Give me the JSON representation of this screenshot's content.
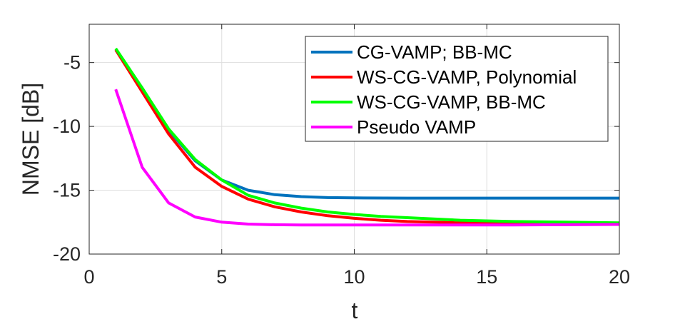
{
  "chart_data": {
    "type": "line",
    "xlabel": "t",
    "ylabel": "NMSE [dB]",
    "xlim": [
      0,
      20
    ],
    "ylim": [
      -20,
      -2
    ],
    "xticks": [
      0,
      5,
      10,
      15,
      20
    ],
    "yticks": [
      -5,
      -10,
      -15,
      -20
    ],
    "grid": true,
    "legend_position": "top-right",
    "series": [
      {
        "name": "CG-VAMP; BB-MC",
        "color": "#0072BD",
        "x": [
          1,
          2,
          3,
          4,
          5,
          6,
          7,
          8,
          9,
          10,
          12,
          14,
          16,
          18,
          20
        ],
        "y": [
          -4.0,
          -7.0,
          -10.3,
          -12.7,
          -14.2,
          -15.0,
          -15.35,
          -15.5,
          -15.58,
          -15.6,
          -15.62,
          -15.62,
          -15.62,
          -15.62,
          -15.62
        ]
      },
      {
        "name": "WS-CG-VAMP, Polynomial",
        "color": "#FF0000",
        "x": [
          1,
          2,
          3,
          4,
          5,
          6,
          7,
          8,
          9,
          10,
          11,
          12,
          14,
          16,
          18,
          20
        ],
        "y": [
          -4.0,
          -7.3,
          -10.6,
          -13.2,
          -14.7,
          -15.7,
          -16.3,
          -16.7,
          -17.0,
          -17.2,
          -17.35,
          -17.45,
          -17.55,
          -17.6,
          -17.6,
          -17.6
        ]
      },
      {
        "name": "WS-CG-VAMP, BB-MC",
        "color": "#00FF00",
        "x": [
          1,
          2,
          3,
          4,
          5,
          6,
          7,
          8,
          9,
          10,
          11,
          12,
          14,
          16,
          18,
          20
        ],
        "y": [
          -3.9,
          -7.0,
          -10.2,
          -12.6,
          -14.2,
          -15.4,
          -16.0,
          -16.4,
          -16.7,
          -16.9,
          -17.05,
          -17.15,
          -17.35,
          -17.45,
          -17.5,
          -17.55
        ]
      },
      {
        "name": "Pseudo VAMP",
        "color": "#FF00FF",
        "x": [
          1,
          2,
          3,
          4,
          5,
          6,
          7,
          8,
          10,
          12,
          14,
          16,
          18,
          20
        ],
        "y": [
          -7.1,
          -13.2,
          -16.0,
          -17.1,
          -17.5,
          -17.65,
          -17.7,
          -17.72,
          -17.72,
          -17.72,
          -17.72,
          -17.72,
          -17.7,
          -17.68
        ]
      }
    ]
  },
  "colors": {
    "axis": "#262626",
    "grid": "#dedede",
    "background": "#ffffff"
  }
}
